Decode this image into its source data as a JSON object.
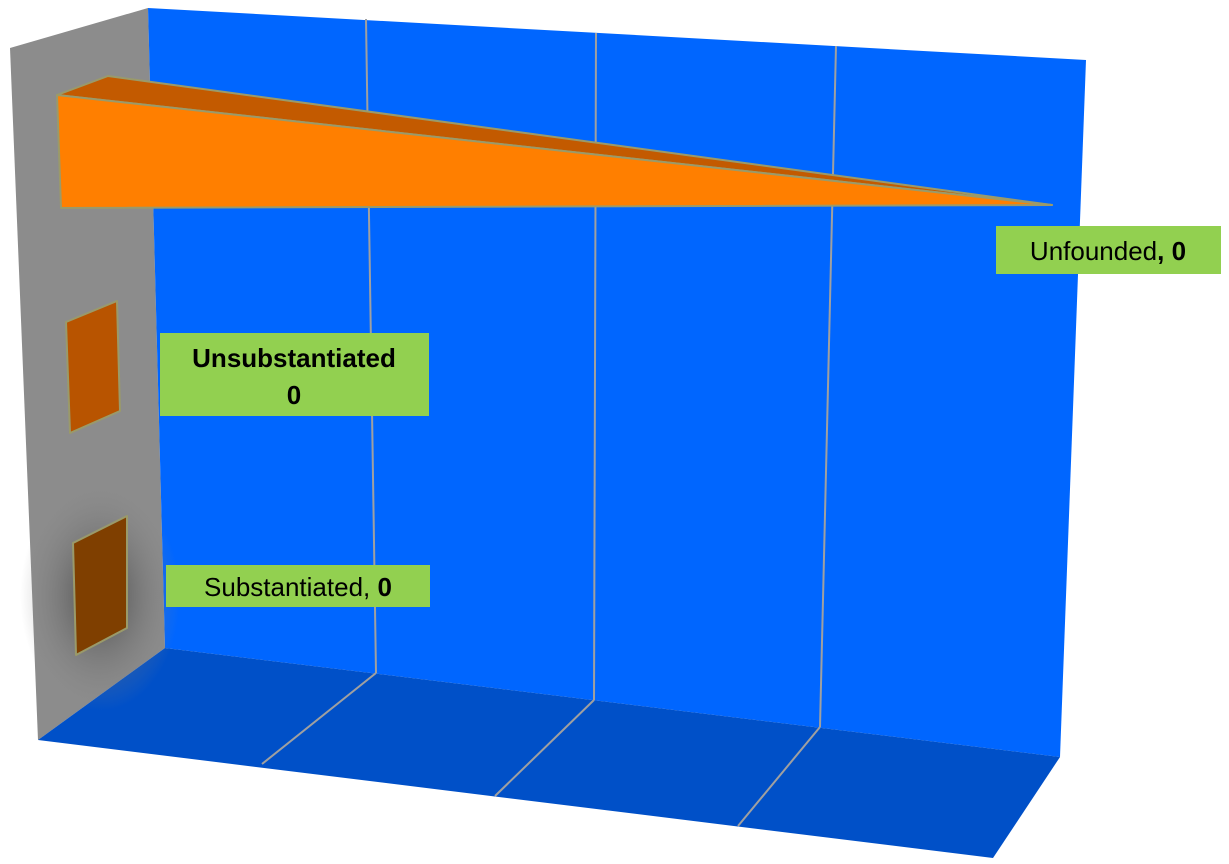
{
  "chart_data": {
    "type": "bar",
    "orientation": "horizontal",
    "style": "3d",
    "categories": [
      "Substantiated",
      "Unsubstantiated",
      "Unfounded"
    ],
    "values": [
      0,
      0,
      0
    ],
    "title": "",
    "xlabel": "",
    "ylabel": "",
    "grid": true,
    "legend": "none",
    "data_labels": [
      {
        "category": "Substantiated",
        "name": "Substantiated",
        "separator": ", ",
        "value": "0",
        "name_bold": false,
        "value_bold": true
      },
      {
        "category": "Unsubstantiated",
        "name": "Unsubstantiated",
        "separator": "",
        "value": "0",
        "name_bold": true,
        "value_bold": true
      },
      {
        "category": "Unfounded",
        "name": "Unfounded",
        "separator": ", ",
        "value": "0",
        "name_bold": false,
        "value_bold": true
      }
    ]
  },
  "colors": {
    "back_wall": "#0066ff",
    "floor": "#0050c8",
    "side_wall": "#8c8c8c",
    "gridline": "#a0a0a0",
    "label_bg": "#92d050",
    "bar_substantiated": "#7f3f00",
    "bar_unsubstantiated": "#b85400",
    "bar_unfounded_front": "#ff7f00",
    "bar_unfounded_top": "#c35a00",
    "bar_outline": "#9a9a6a"
  }
}
